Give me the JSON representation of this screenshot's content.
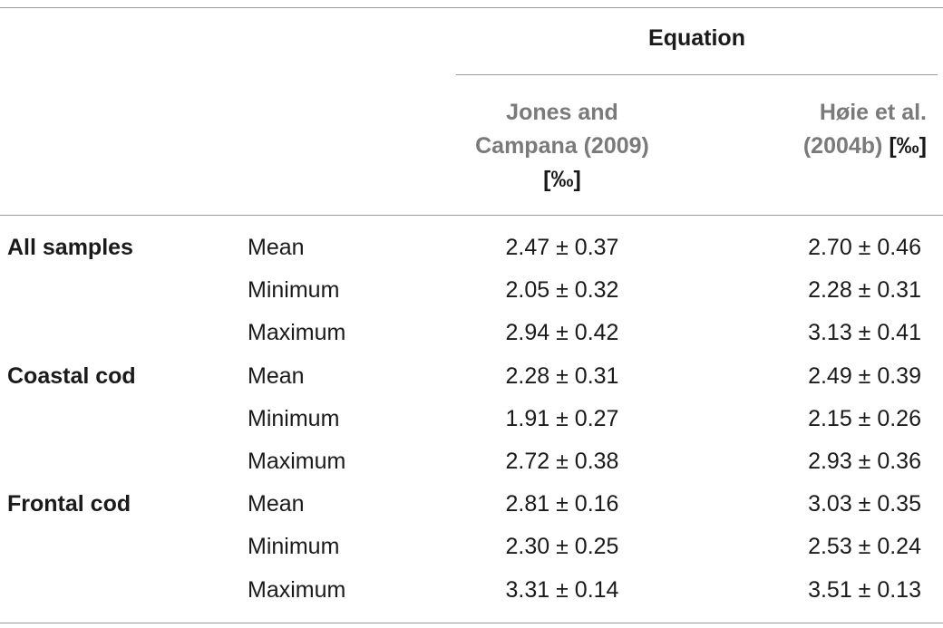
{
  "table": {
    "equation_header": "Equation",
    "columns": [
      {
        "lines": [
          "Jones and",
          "Campana (2009)"
        ],
        "unit": "[‰]"
      },
      {
        "lines": [
          "Høie et al."
        ],
        "last_line": "(2004b)",
        "unit": "[‰]"
      }
    ],
    "rows": [
      {
        "group": "All samples",
        "stat": "Mean",
        "v1": "2.47 ± 0.37",
        "v2": "2.70 ± 0.46"
      },
      {
        "group": "",
        "stat": "Minimum",
        "v1": "2.05 ± 0.32",
        "v2": "2.28 ± 0.31"
      },
      {
        "group": "",
        "stat": "Maximum",
        "v1": "2.94 ± 0.42",
        "v2": "3.13 ± 0.41"
      },
      {
        "group": "Coastal cod",
        "stat": "Mean",
        "v1": "2.28 ± 0.31",
        "v2": "2.49 ± 0.39"
      },
      {
        "group": "",
        "stat": "Minimum",
        "v1": "1.91 ± 0.27",
        "v2": "2.15 ± 0.26"
      },
      {
        "group": "",
        "stat": "Maximum",
        "v1": "2.72 ± 0.38",
        "v2": "2.93 ± 0.36"
      },
      {
        "group": "Frontal cod",
        "stat": "Mean",
        "v1": "2.81 ± 0.16",
        "v2": "3.03 ± 0.35"
      },
      {
        "group": "",
        "stat": "Minimum",
        "v1": "2.30 ± 0.25",
        "v2": "2.53 ± 0.24"
      },
      {
        "group": "",
        "stat": "Maximum",
        "v1": "3.31 ± 0.14",
        "v2": "3.51 ± 0.13"
      }
    ]
  }
}
